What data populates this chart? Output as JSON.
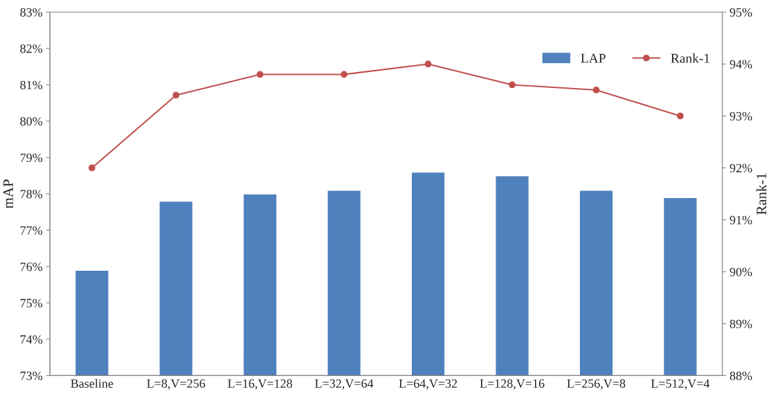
{
  "chart_data": {
    "type": "bar",
    "ylabel": "mAP",
    "y2label": "Rank-1",
    "categories": [
      "Baseline",
      "L=8,V=256",
      "L=16,V=128",
      "L=32,V=64",
      "L=64,V=32",
      "L=128,V=16",
      "L=256,V=8",
      "L=512,V=4"
    ],
    "series": [
      {
        "name": "LAP",
        "color": "#4f81bd",
        "values": [
          75.9,
          77.8,
          78.0,
          78.1,
          78.6,
          78.5,
          78.1,
          77.9
        ]
      },
      {
        "name": "Rank-1",
        "type": "line",
        "axis": "y2",
        "color": "#c0504d",
        "marker": "circle",
        "values": [
          92.0,
          93.4,
          93.8,
          93.8,
          94.0,
          93.6,
          93.5,
          93.0
        ]
      }
    ],
    "ylim": [
      73,
      83
    ],
    "yticks": [
      {
        "value": 73,
        "label": "73%"
      },
      {
        "value": 74,
        "label": "74%"
      },
      {
        "value": 75,
        "label": "75%"
      },
      {
        "value": 76,
        "label": "76%"
      },
      {
        "value": 77,
        "label": "77%"
      },
      {
        "value": 78,
        "label": "78%"
      },
      {
        "value": 79,
        "label": "79%"
      },
      {
        "value": 80,
        "label": "80%"
      },
      {
        "value": 81,
        "label": "81%"
      },
      {
        "value": 82,
        "label": "82%"
      },
      {
        "value": 83,
        "label": "83%"
      }
    ],
    "y2lim": [
      88,
      95
    ],
    "y2ticks": [
      {
        "value": 88,
        "label": "88%"
      },
      {
        "value": 89,
        "label": "89%"
      },
      {
        "value": 90,
        "label": "90%"
      },
      {
        "value": 91,
        "label": "91%"
      },
      {
        "value": 92,
        "label": "92%"
      },
      {
        "value": 93,
        "label": "93%"
      },
      {
        "value": 94,
        "label": "94%"
      },
      {
        "value": 95,
        "label": "95%"
      }
    ],
    "grid": false,
    "legend": "top right"
  }
}
